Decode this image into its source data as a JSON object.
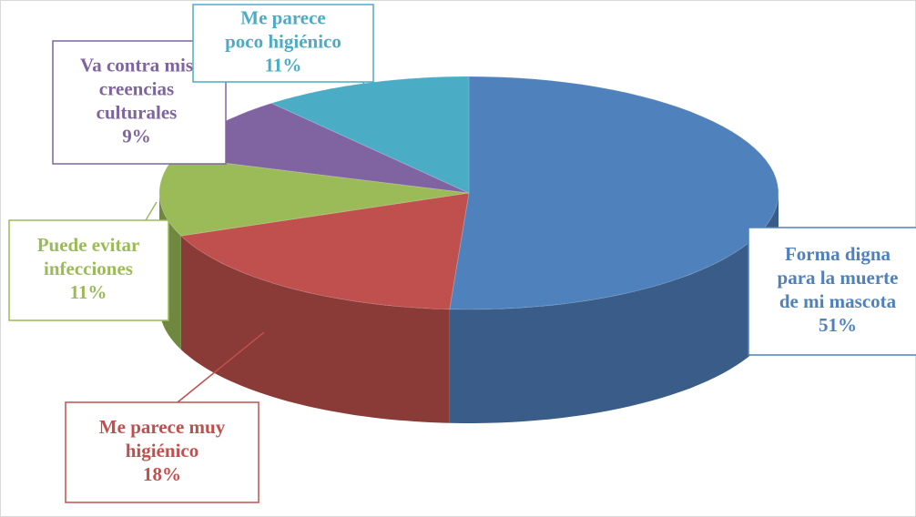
{
  "chart_data": {
    "type": "pie",
    "categories": [
      "Forma digna\npara la muerte\nde mi mascota",
      "Me parece muy\nhigiénico",
      "Puede evitar\ninfecciones",
      "Va contra mis\ncreencias\nculturales",
      "Me parece\npoco higiénico"
    ],
    "values": [
      51,
      18,
      11,
      9,
      11
    ],
    "value_labels": [
      "51%",
      "18%",
      "11%",
      "9%",
      "11%"
    ],
    "colors": [
      "#4f81bd",
      "#c0504d",
      "#9bbb59",
      "#8064a2",
      "#4bacc6"
    ]
  }
}
